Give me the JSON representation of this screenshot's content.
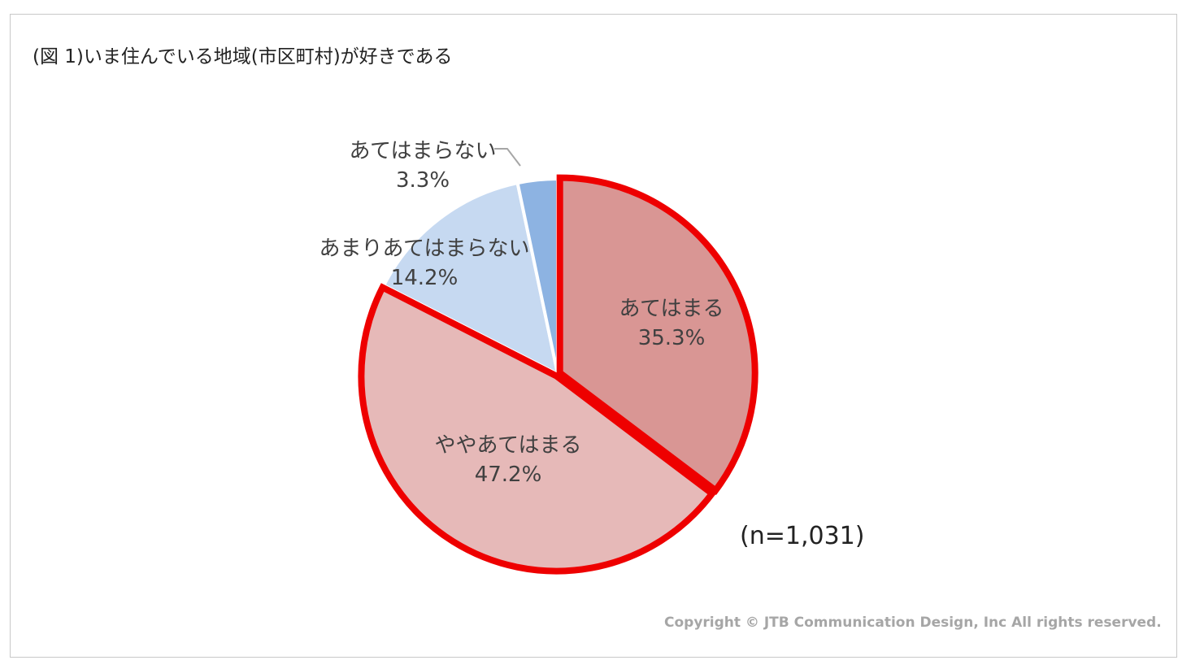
{
  "title": "(図 1)いま住んでいる地域(市区町村)が好きである",
  "sample_size": "(n=1,031)",
  "copyright": "Copyright © JTB Communication Design, Inc All rights reserved.",
  "colors": {
    "atehamaru": "#d99694",
    "yaya_atehamaru": "#e6b9b8",
    "amari_atehamaranai": "#c6d9f1",
    "atehamaranai": "#8db3e2",
    "highlight": "#ee0000",
    "leader": "#a6a6a6"
  },
  "chart_data": {
    "type": "pie",
    "title": "(図 1)いま住んでいる地域(市区町村)が好きである",
    "slices": [
      {
        "label": "あてはまる",
        "value": 35.3,
        "value_label": "35.3%",
        "highlighted": true
      },
      {
        "label": "ややあてはまる",
        "value": 47.2,
        "value_label": "47.2%",
        "highlighted": true
      },
      {
        "label": "あまりあてはまらない",
        "value": 14.2,
        "value_label": "14.2%",
        "highlighted": false
      },
      {
        "label": "あてはまらない",
        "value": 3.3,
        "value_label": "3.3%",
        "highlighted": false
      }
    ],
    "start": "12 o'clock, clockwise"
  }
}
